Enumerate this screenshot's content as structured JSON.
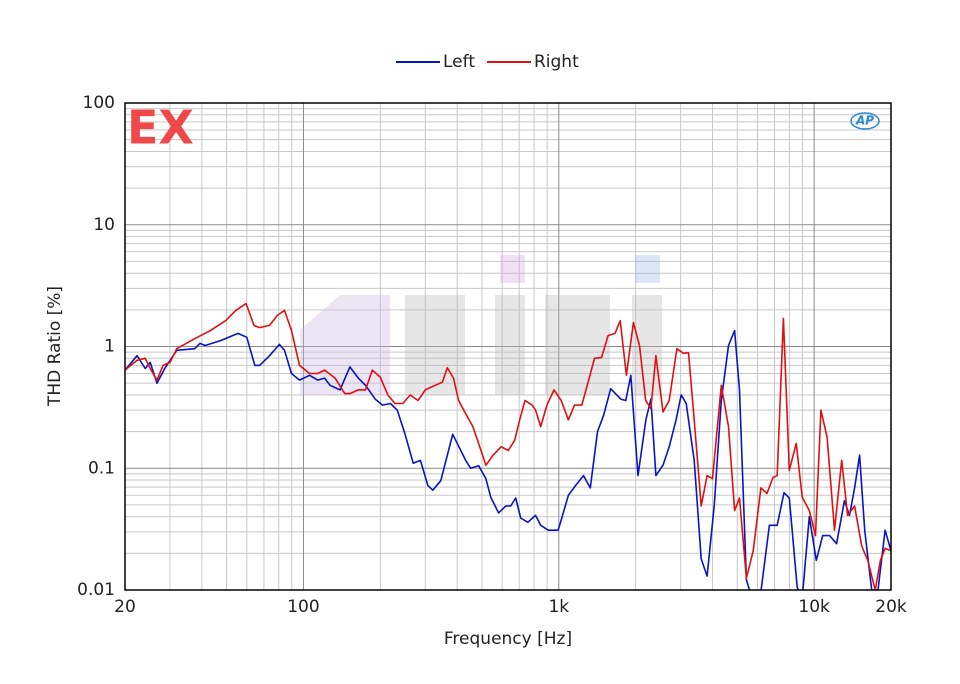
{
  "chart_data": {
    "type": "line",
    "x_label": "Frequency [Hz]",
    "y_label": "THD Ratio [%]",
    "annotations": [
      "EX",
      "AP"
    ],
    "xlog": true,
    "ylog": true,
    "grid": true,
    "legend": "top",
    "xlim": [
      20,
      20000
    ],
    "ylim": [
      0.01,
      100
    ],
    "xticks": [
      20,
      100,
      {
        "value": 1000,
        "label": "1k"
      },
      {
        "value": 10000,
        "label": "10k"
      },
      {
        "value": 20000,
        "label": "20k"
      }
    ],
    "yticks": [
      0.01,
      0.1,
      1,
      10,
      100
    ],
    "series": [
      {
        "name": "Left",
        "color": "#0a14c0",
        "x": [
          20,
          22.3,
          24,
          25.1,
          26.7,
          28.6,
          31.9,
          37.5,
          39.3,
          41.2,
          47.5,
          55.4,
          60,
          64.5,
          67.3,
          73.7,
          80.5,
          84.3,
          89.8,
          96.5,
          105.7,
          113.7,
          121,
          127,
          139,
          152,
          164,
          175,
          191,
          204,
          219,
          233,
          250,
          269,
          287,
          307,
          321,
          345,
          384,
          432,
          452,
          485,
          518,
          541,
          581,
          620,
          648,
          678,
          709,
          756,
          811,
          849,
          910,
          995,
          1090,
          1163,
          1250,
          1329,
          1417,
          1497,
          1597,
          1748,
          1830,
          1914,
          2042,
          2193,
          2295,
          2400,
          2560,
          2705,
          2880,
          3015,
          3154,
          3390,
          3610,
          3810,
          4060,
          4330,
          4620,
          4880,
          5100,
          5430,
          5770,
          6200,
          6680,
          7170,
          7620,
          7990,
          8580,
          8980,
          9570,
          10200,
          10800,
          11500,
          12250,
          13140,
          13760,
          14400,
          15070,
          15780,
          16810,
          17780,
          18960,
          20000
        ],
        "values": [
          0.64,
          0.84,
          0.66,
          0.74,
          0.5,
          0.66,
          0.93,
          0.96,
          1.06,
          1.02,
          1.12,
          1.28,
          1.19,
          0.7,
          0.7,
          0.84,
          1.04,
          0.93,
          0.6,
          0.53,
          0.58,
          0.53,
          0.55,
          0.48,
          0.44,
          0.68,
          0.55,
          0.48,
          0.37,
          0.33,
          0.34,
          0.3,
          0.19,
          0.11,
          0.116,
          0.072,
          0.066,
          0.079,
          0.19,
          0.116,
          0.1,
          0.105,
          0.082,
          0.058,
          0.043,
          0.049,
          0.049,
          0.057,
          0.039,
          0.036,
          0.041,
          0.034,
          0.031,
          0.031,
          0.06,
          0.072,
          0.087,
          0.069,
          0.2,
          0.27,
          0.45,
          0.37,
          0.36,
          0.58,
          0.087,
          0.25,
          0.37,
          0.087,
          0.106,
          0.15,
          0.25,
          0.4,
          0.34,
          0.116,
          0.018,
          0.013,
          0.049,
          0.36,
          1.02,
          1.35,
          0.44,
          0.0121,
          0.008,
          0.01,
          0.034,
          0.034,
          0.063,
          0.057,
          0.0105,
          0.0085,
          0.04,
          0.0175,
          0.028,
          0.028,
          0.024,
          0.054,
          0.041,
          0.069,
          0.128,
          0.031,
          0.01,
          0.01,
          0.031,
          0.021
        ]
      },
      {
        "name": "Right",
        "color": "#e01010",
        "x": [
          20,
          22.3,
          24,
          25.1,
          26.7,
          28.2,
          30,
          31.9,
          37.5,
          43.2,
          49.5,
          54.3,
          59.6,
          64,
          67.3,
          73.7,
          79,
          84.3,
          89.8,
          96.5,
          105.7,
          113.7,
          121,
          133,
          145,
          152,
          164,
          175,
          186,
          200,
          214,
          228,
          245,
          262,
          281,
          300,
          328,
          350,
          366,
          387,
          405,
          432,
          461,
          485,
          518,
          553,
          595,
          634,
          672,
          703,
          737,
          786,
          811,
          849,
          898,
          958,
          1022,
          1090,
          1152,
          1230,
          1310,
          1380,
          1470,
          1560,
          1660,
          1740,
          1840,
          1960,
          2070,
          2190,
          2295,
          2400,
          2560,
          2705,
          2900,
          3075,
          3220,
          3390,
          3610,
          3810,
          4000,
          4330,
          4620,
          4880,
          5100,
          5430,
          5770,
          6190,
          6530,
          6900,
          7170,
          7580,
          7990,
          8510,
          8980,
          9570,
          10120,
          10630,
          11240,
          12020,
          12820,
          13520,
          14400,
          15350,
          16220,
          17350,
          18180,
          18960,
          20000
        ],
        "values": [
          0.64,
          0.77,
          0.8,
          0.66,
          0.53,
          0.7,
          0.74,
          0.96,
          1.16,
          1.35,
          1.63,
          1.98,
          2.25,
          1.49,
          1.43,
          1.49,
          1.8,
          1.98,
          1.35,
          0.7,
          0.6,
          0.6,
          0.64,
          0.55,
          0.41,
          0.41,
          0.44,
          0.44,
          0.64,
          0.56,
          0.4,
          0.34,
          0.34,
          0.4,
          0.36,
          0.44,
          0.48,
          0.51,
          0.67,
          0.55,
          0.36,
          0.28,
          0.22,
          0.16,
          0.106,
          0.128,
          0.15,
          0.14,
          0.17,
          0.25,
          0.36,
          0.33,
          0.3,
          0.22,
          0.33,
          0.44,
          0.36,
          0.25,
          0.33,
          0.33,
          0.53,
          0.8,
          0.81,
          1.23,
          1.28,
          1.63,
          0.58,
          1.57,
          1.02,
          0.36,
          0.31,
          0.84,
          0.29,
          0.36,
          0.96,
          0.88,
          0.89,
          0.25,
          0.049,
          0.087,
          0.082,
          0.48,
          0.22,
          0.045,
          0.057,
          0.0125,
          0.021,
          0.069,
          0.062,
          0.084,
          0.087,
          1.7,
          0.096,
          0.16,
          0.058,
          0.045,
          0.028,
          0.3,
          0.18,
          0.031,
          0.116,
          0.041,
          0.049,
          0.023,
          0.0175,
          0.01,
          0.0175,
          0.022,
          0.021
        ]
      }
    ]
  }
}
